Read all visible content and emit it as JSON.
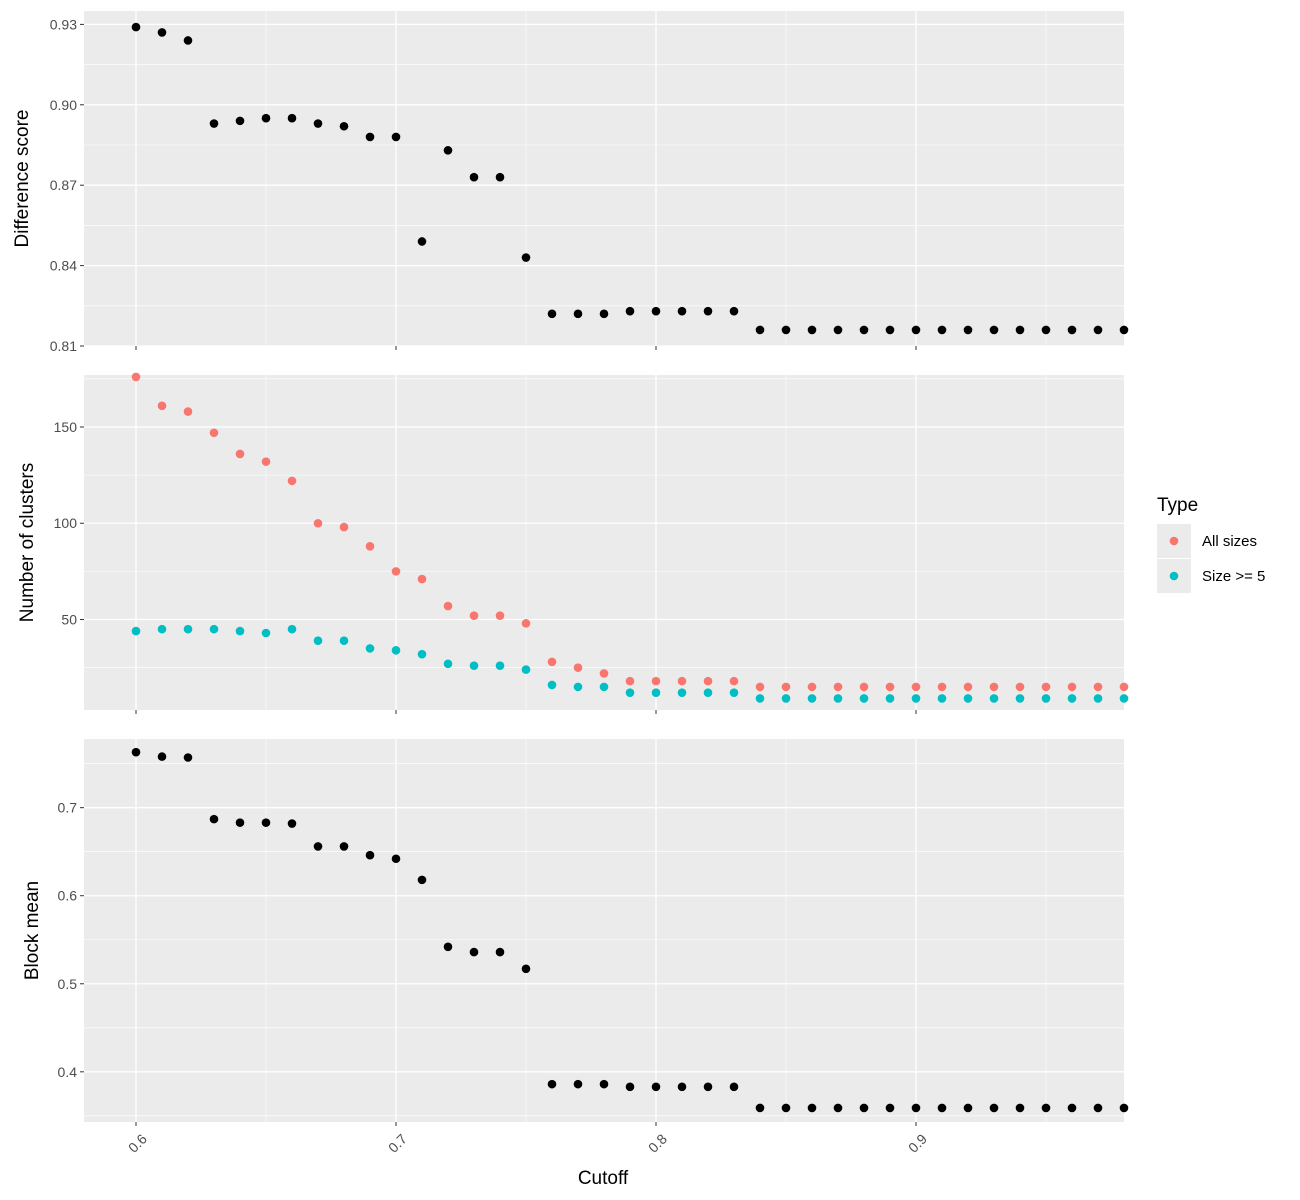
{
  "chart_data": {
    "type": "scatter",
    "x": [
      0.6,
      0.61,
      0.62,
      0.63,
      0.64,
      0.65,
      0.66,
      0.67,
      0.68,
      0.69,
      0.7,
      0.71,
      0.72,
      0.73,
      0.74,
      0.75,
      0.76,
      0.77,
      0.78,
      0.79,
      0.8,
      0.81,
      0.82,
      0.83,
      0.84,
      0.85,
      0.86,
      0.87,
      0.88,
      0.89,
      0.9,
      0.91,
      0.92,
      0.93,
      0.94,
      0.95,
      0.96,
      0.97,
      0.98
    ],
    "xlabel": "Cutoff",
    "xlim": [
      0.58,
      0.98
    ],
    "xticks": [
      "0.6",
      "0.7",
      "0.8",
      "0.9"
    ],
    "xtick_values": [
      0.6,
      0.7,
      0.8,
      0.9
    ],
    "grid": true,
    "legend": {
      "title": "Type",
      "position": "right",
      "entries": [
        {
          "label": "All sizes",
          "color": "#F8766D"
        },
        {
          "label": "Size >= 5",
          "color": "#00BFC4"
        }
      ]
    },
    "panels": [
      {
        "ylabel": "Difference score",
        "ylim": [
          0.81,
          0.935
        ],
        "yticks": [
          "0.81",
          "0.84",
          "0.87",
          "0.90",
          "0.93"
        ],
        "ytick_values": [
          0.81,
          0.84,
          0.87,
          0.9,
          0.93
        ],
        "series": [
          {
            "color": "#000000",
            "values": [
              0.929,
              0.927,
              0.924,
              0.893,
              0.894,
              0.895,
              0.895,
              0.893,
              0.892,
              0.888,
              0.888,
              0.849,
              0.883,
              0.873,
              0.873,
              0.843,
              0.822,
              0.822,
              0.822,
              0.823,
              0.823,
              0.823,
              0.823,
              0.823,
              0.816,
              0.816,
              0.816,
              0.816,
              0.816,
              0.816,
              0.816,
              0.816,
              0.816,
              0.816,
              0.816,
              0.816,
              0.816,
              0.816,
              0.816
            ]
          }
        ]
      },
      {
        "ylabel": "Number of clusters",
        "ylim": [
          3,
          177
        ],
        "yticks": [
          "50",
          "100",
          "150"
        ],
        "ytick_values": [
          50,
          100,
          150
        ],
        "series": [
          {
            "name": "All sizes",
            "color": "#F8766D",
            "values": [
              176,
              161,
              158,
              147,
              136,
              132,
              122,
              100,
              98,
              88,
              75,
              71,
              57,
              52,
              52,
              48,
              28,
              25,
              22,
              18,
              18,
              18,
              18,
              18,
              15,
              15,
              15,
              15,
              15,
              15,
              15,
              15,
              15,
              15,
              15,
              15,
              15,
              15,
              15
            ]
          },
          {
            "name": "Size >= 5",
            "color": "#00BFC4",
            "values": [
              44,
              45,
              45,
              45,
              44,
              43,
              45,
              39,
              39,
              35,
              34,
              32,
              27,
              26,
              26,
              24,
              16,
              15,
              15,
              12,
              12,
              12,
              12,
              12,
              9,
              9,
              9,
              9,
              9,
              9,
              9,
              9,
              9,
              9,
              9,
              9,
              9,
              9,
              9
            ]
          }
        ]
      },
      {
        "ylabel": "Block mean",
        "ylim": [
          0.343,
          0.778
        ],
        "yticks": [
          "0.4",
          "0.5",
          "0.6",
          "0.7"
        ],
        "ytick_values": [
          0.4,
          0.5,
          0.6,
          0.7
        ],
        "series": [
          {
            "color": "#000000",
            "values": [
              0.763,
              0.758,
              0.757,
              0.687,
              0.683,
              0.683,
              0.682,
              0.656,
              0.656,
              0.646,
              0.642,
              0.618,
              0.542,
              0.536,
              0.536,
              0.517,
              0.386,
              0.386,
              0.386,
              0.383,
              0.383,
              0.383,
              0.383,
              0.383,
              0.359,
              0.359,
              0.359,
              0.359,
              0.359,
              0.359,
              0.359,
              0.359,
              0.359,
              0.359,
              0.359,
              0.359,
              0.359,
              0.359,
              0.359
            ]
          }
        ]
      }
    ]
  }
}
